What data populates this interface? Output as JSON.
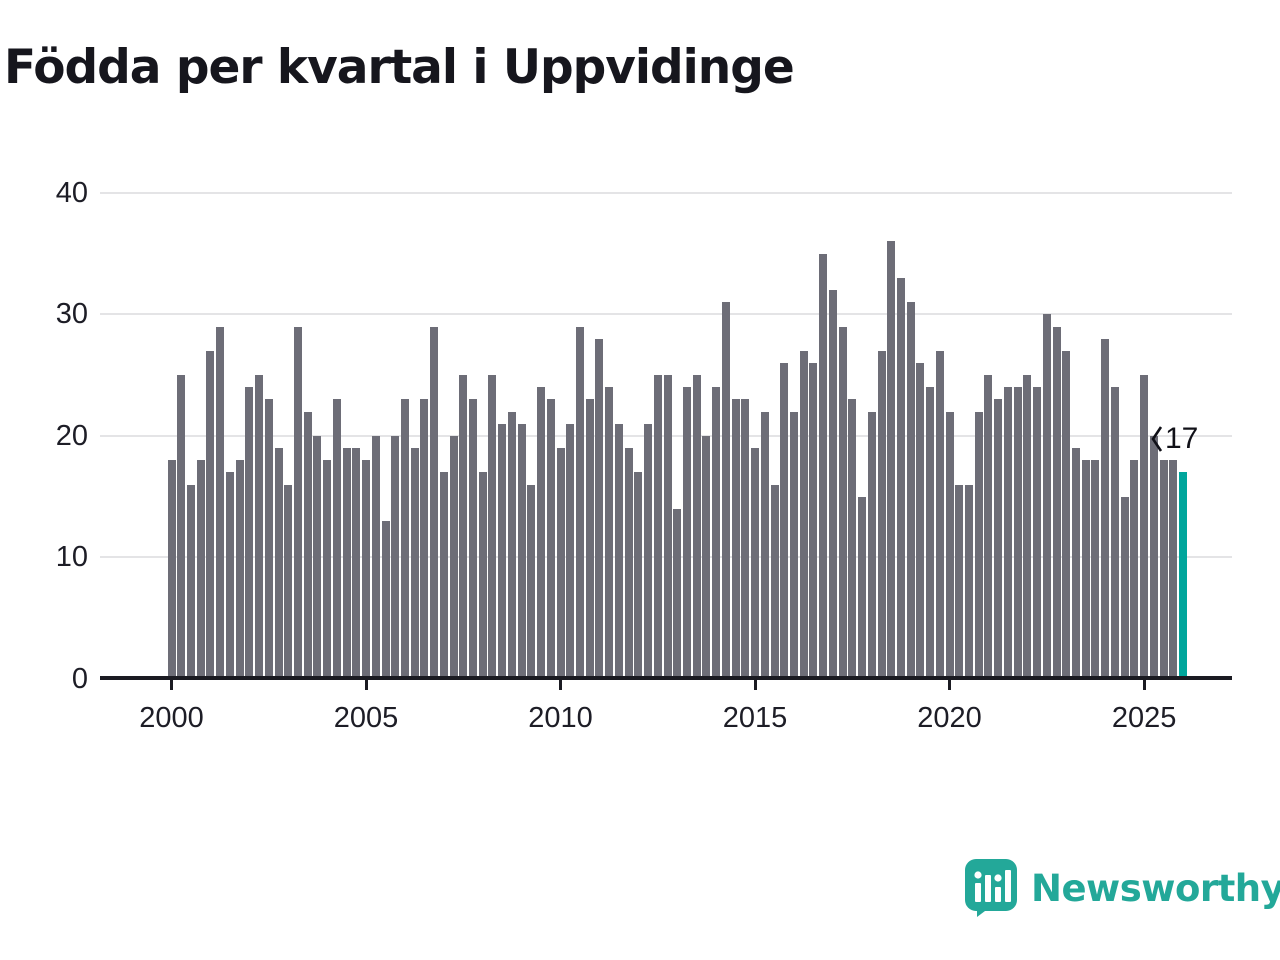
{
  "header": {
    "title": "Födda per kvartal i Uppvidinge"
  },
  "colors": {
    "bar": "#6d6d77",
    "highlight": "#00a69c",
    "grid": "#e4e4e6",
    "axis": "#1b1b22",
    "text": "#1d1d26",
    "logo": "#23a899"
  },
  "chart_data": {
    "type": "bar",
    "title": "Födda per kvartal i Uppvidinge",
    "x_unit": "quarter",
    "start": {
      "year": 2000,
      "quarter": 1
    },
    "values": [
      18,
      25,
      16,
      18,
      27,
      29,
      17,
      18,
      24,
      25,
      23,
      19,
      16,
      29,
      22,
      20,
      18,
      23,
      19,
      19,
      18,
      20,
      13,
      20,
      23,
      19,
      23,
      29,
      17,
      20,
      25,
      23,
      17,
      25,
      21,
      22,
      21,
      16,
      24,
      23,
      19,
      21,
      29,
      23,
      28,
      24,
      21,
      19,
      17,
      21,
      25,
      25,
      14,
      24,
      25,
      20,
      24,
      31,
      23,
      23,
      19,
      22,
      16,
      26,
      22,
      27,
      26,
      35,
      32,
      29,
      23,
      15,
      22,
      27,
      36,
      33,
      31,
      26,
      24,
      27,
      22,
      16,
      16,
      22,
      25,
      23,
      24,
      24,
      25,
      24,
      30,
      29,
      27,
      19,
      18,
      18,
      28,
      24,
      15,
      18,
      25,
      20,
      18,
      18,
      17
    ],
    "x_ticks": [
      {
        "label": "2000",
        "year": 2000
      },
      {
        "label": "2005",
        "year": 2005
      },
      {
        "label": "2010",
        "year": 2010
      },
      {
        "label": "2015",
        "year": 2015
      },
      {
        "label": "2020",
        "year": 2020
      },
      {
        "label": "2025",
        "year": 2025
      }
    ],
    "y_ticks": [
      0,
      10,
      20,
      30,
      40
    ],
    "ylim": [
      0,
      42
    ],
    "grid": "horizontal",
    "legend": "none",
    "highlight": {
      "index": 104,
      "label": "17"
    }
  },
  "footer": {
    "brand": "Newsworthy"
  }
}
